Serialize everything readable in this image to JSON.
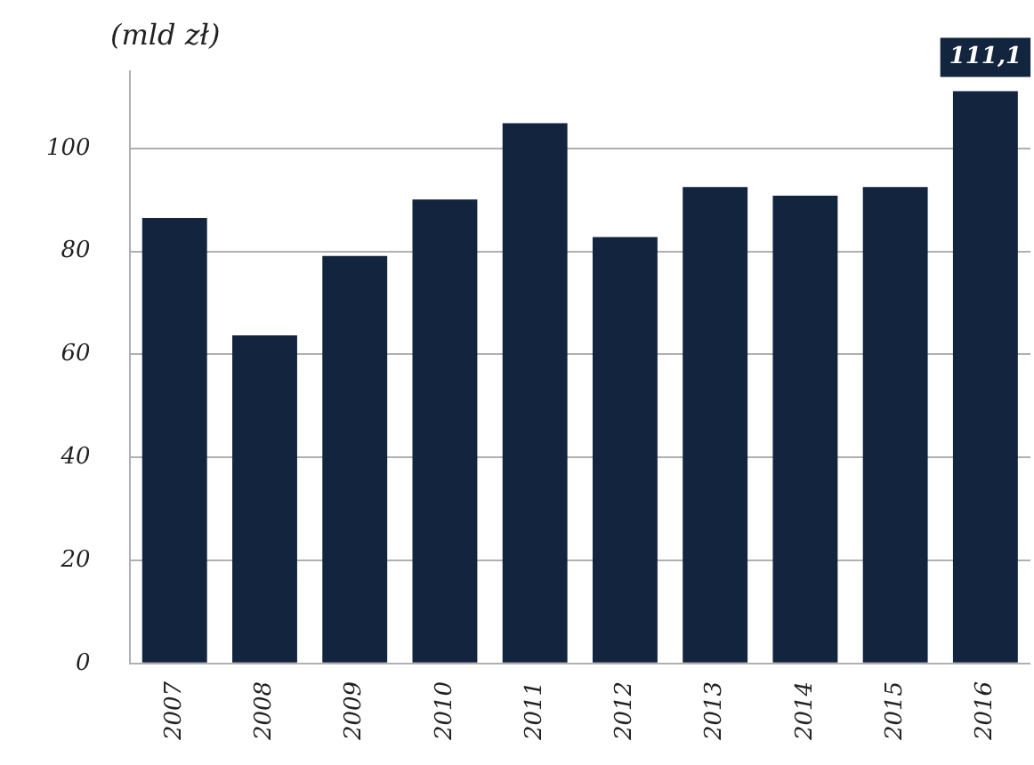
{
  "chart_data": {
    "type": "bar",
    "ylabel": "(mld zł)",
    "categories": [
      "2007",
      "2008",
      "2009",
      "2010",
      "2011",
      "2012",
      "2013",
      "2014",
      "2015",
      "2016"
    ],
    "values": [
      86.5,
      63.7,
      79.1,
      90.1,
      104.9,
      82.8,
      92.5,
      90.8,
      92.5,
      111.1
    ],
    "value_labels": [
      null,
      null,
      null,
      null,
      null,
      null,
      null,
      null,
      null,
      "111,1"
    ],
    "color": "#13243f",
    "ylim": [
      0,
      115
    ],
    "yticks": [
      0,
      20,
      40,
      60,
      80,
      100
    ],
    "grid": "y",
    "legend": false
  }
}
